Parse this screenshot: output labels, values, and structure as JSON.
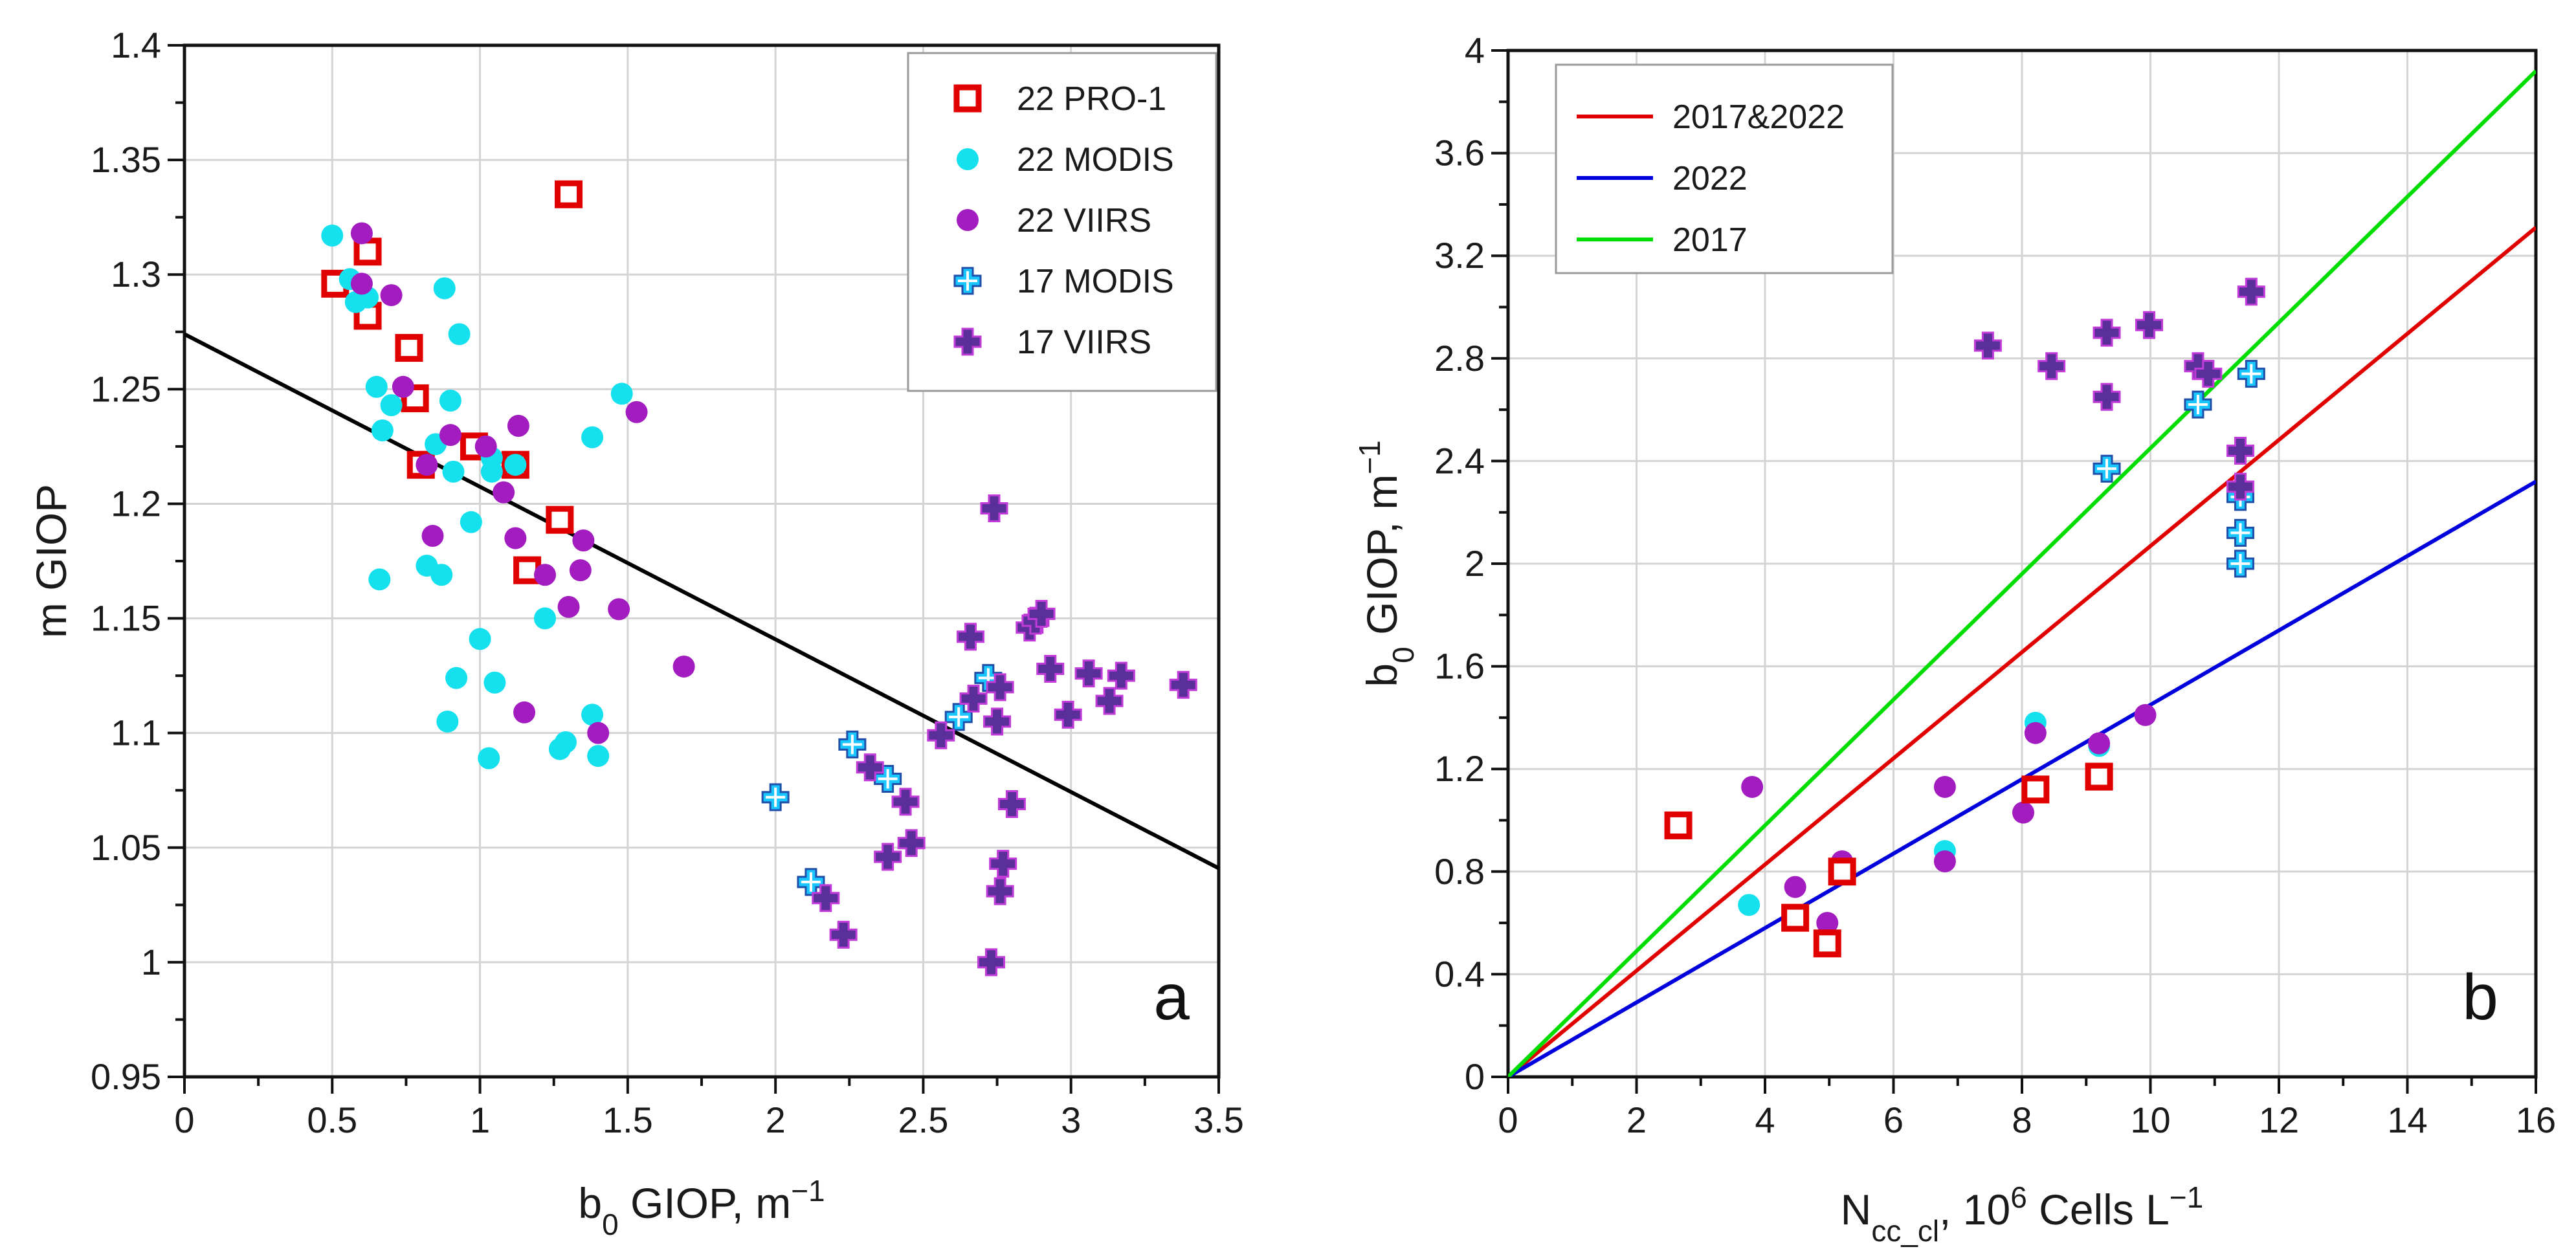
{
  "chart_data": [
    {
      "type": "scatter",
      "panel_label": "a",
      "xlabel": "b0 GIOP, m−1",
      "xlabel_parts": {
        "main": "b",
        "sub": "0",
        "rest": " GIOP, m",
        "sup": "−1"
      },
      "ylabel": "m GIOP",
      "xlim": [
        0,
        3.5
      ],
      "ylim": [
        0.95,
        1.4
      ],
      "xticks": [
        "0",
        "0.5",
        "1",
        "1.5",
        "2",
        "2.5",
        "3",
        "3.5"
      ],
      "xtick_values": [
        0,
        0.5,
        1,
        1.5,
        2,
        2.5,
        3,
        3.5
      ],
      "yticks": [
        "0.95",
        "1",
        "1.05",
        "1.1",
        "1.15",
        "1.2",
        "1.25",
        "1.3",
        "1.35",
        "1.4"
      ],
      "ytick_values": [
        0.95,
        1.0,
        1.05,
        1.1,
        1.15,
        1.2,
        1.25,
        1.3,
        1.35,
        1.4
      ],
      "grid": true,
      "legend": "top-right",
      "series": [
        {
          "name": "22 PRO-1",
          "marker": "square-open",
          "color": "#e00000",
          "x": [
            0.51,
            0.62,
            0.62,
            0.76,
            0.78,
            0.8,
            0.98,
            1.12,
            1.16,
            1.27,
            1.3
          ],
          "y": [
            1.296,
            1.31,
            1.282,
            1.268,
            1.246,
            1.217,
            1.225,
            1.217,
            1.171,
            1.193,
            1.335
          ]
        },
        {
          "name": "22 MODIS",
          "marker": "circle",
          "color": "#15e0ee",
          "x": [
            0.5,
            0.56,
            0.58,
            0.62,
            0.65,
            0.67,
            0.7,
            0.66,
            0.82,
            0.85,
            0.87,
            0.9,
            0.91,
            0.92,
            0.93,
            0.97,
            1.0,
            1.03,
            1.05,
            0.89,
            1.04,
            1.04,
            1.12,
            1.22,
            1.27,
            1.29,
            1.38,
            1.38,
            1.4,
            0.88,
            1.48
          ],
          "y": [
            1.317,
            1.298,
            1.288,
            1.29,
            1.251,
            1.232,
            1.243,
            1.167,
            1.173,
            1.226,
            1.169,
            1.245,
            1.214,
            1.124,
            1.274,
            1.192,
            1.141,
            1.089,
            1.122,
            1.105,
            1.214,
            1.22,
            1.217,
            1.15,
            1.093,
            1.096,
            1.229,
            1.108,
            1.09,
            1.294,
            1.248
          ]
        },
        {
          "name": "22 VIIRS",
          "marker": "circle",
          "color": "#a21cc0",
          "x": [
            0.6,
            0.6,
            0.7,
            0.74,
            0.82,
            0.84,
            0.9,
            1.02,
            1.08,
            1.12,
            1.13,
            1.15,
            1.22,
            1.3,
            1.34,
            1.35,
            1.4,
            1.47,
            1.53,
            1.69
          ],
          "y": [
            1.318,
            1.296,
            1.291,
            1.251,
            1.217,
            1.186,
            1.23,
            1.225,
            1.205,
            1.185,
            1.234,
            1.109,
            1.169,
            1.155,
            1.171,
            1.184,
            1.1,
            1.154,
            1.24,
            1.129
          ]
        },
        {
          "name": "17 MODIS",
          "marker": "plus-open",
          "color": "#1ac6ff",
          "x": [
            2.0,
            2.12,
            2.26,
            2.38,
            2.62,
            2.72
          ],
          "y": [
            1.072,
            1.035,
            1.095,
            1.08,
            1.107,
            1.124
          ]
        },
        {
          "name": "17 VIIRS",
          "marker": "plus",
          "color": "#5a2f9a",
          "x": [
            2.17,
            2.23,
            2.32,
            2.38,
            2.44,
            2.46,
            2.56,
            2.66,
            2.67,
            2.73,
            2.74,
            2.75,
            2.76,
            2.76,
            2.77,
            2.8,
            2.86,
            2.88,
            2.9,
            2.93,
            2.99,
            3.06,
            3.13,
            3.17,
            3.38
          ],
          "y": [
            1.028,
            1.012,
            1.085,
            1.046,
            1.07,
            1.052,
            1.099,
            1.142,
            1.115,
            1.0,
            1.198,
            1.105,
            1.031,
            1.12,
            1.043,
            1.069,
            1.146,
            1.149,
            1.152,
            1.128,
            1.108,
            1.126,
            1.114,
            1.125,
            1.121
          ]
        }
      ],
      "lines": [
        {
          "name": "fit",
          "color": "#000000",
          "x": [
            0,
            3.5
          ],
          "y": [
            1.274,
            1.041
          ]
        }
      ]
    },
    {
      "type": "scatter",
      "panel_label": "b",
      "xlabel": "Ncc_cl, 106 Cells L−1",
      "xlabel_parts": {
        "main": "N",
        "sub": "cc_cl",
        "mid": ", 10",
        "sup": "6",
        "rest": " Cells L",
        "sup2": "−1"
      },
      "ylabel": "b0 GIOP, m−1",
      "ylabel_parts": {
        "main": "b",
        "sub": "0",
        "rest": " GIOP, m",
        "sup": "−1"
      },
      "xlim": [
        0,
        16
      ],
      "ylim": [
        0,
        4
      ],
      "xticks": [
        "0",
        "2",
        "4",
        "6",
        "8",
        "10",
        "12",
        "14",
        "16"
      ],
      "xtick_values": [
        0,
        2,
        4,
        6,
        8,
        10,
        12,
        14,
        16
      ],
      "yticks": [
        "0",
        "0.4",
        "0.8",
        "1.2",
        "1.6",
        "2",
        "2.4",
        "2.8",
        "3.2",
        "3.6",
        "4"
      ],
      "ytick_values": [
        0,
        0.4,
        0.8,
        1.2,
        1.6,
        2.0,
        2.4,
        2.8,
        3.2,
        3.6,
        4.0
      ],
      "grid": true,
      "legend": "top-left",
      "lines": [
        {
          "name": "2017&2022",
          "color": "#e00000",
          "x": [
            0,
            16
          ],
          "y": [
            0,
            3.31
          ]
        },
        {
          "name": "2022",
          "color": "#0000dd",
          "x": [
            0,
            16
          ],
          "y": [
            0,
            2.32
          ]
        },
        {
          "name": "2017",
          "color": "#00dd00",
          "x": [
            0,
            16
          ],
          "y": [
            0,
            3.92
          ]
        }
      ],
      "series": [
        {
          "name": "22 MODIS",
          "marker": "circle",
          "color": "#15e0ee",
          "x": [
            3.75,
            4.97,
            6.8,
            8.21,
            9.2
          ],
          "y": [
            0.67,
            0.53,
            0.88,
            1.38,
            1.29
          ]
        },
        {
          "name": "22 VIIRS",
          "marker": "circle",
          "color": "#a21cc0",
          "x": [
            3.8,
            4.47,
            4.97,
            5.2,
            6.8,
            6.8,
            8.02,
            8.21,
            9.2,
            9.92
          ],
          "y": [
            1.13,
            0.74,
            0.6,
            0.84,
            0.84,
            1.13,
            1.03,
            1.34,
            1.3,
            1.41
          ]
        },
        {
          "name": "22 PRO-1",
          "marker": "square-open",
          "color": "#e00000",
          "x": [
            2.65,
            4.47,
            4.97,
            5.2,
            8.21,
            9.2
          ],
          "y": [
            0.98,
            0.62,
            0.52,
            0.8,
            1.12,
            1.17
          ]
        },
        {
          "name": "17 MODIS",
          "marker": "plus-open",
          "color": "#1ac6ff",
          "x": [
            9.32,
            10.74,
            11.4,
            11.4,
            11.4,
            11.57
          ],
          "y": [
            2.37,
            2.62,
            2.0,
            2.12,
            2.26,
            2.74
          ]
        },
        {
          "name": "17 VIIRS",
          "marker": "plus",
          "color": "#5a2f9a",
          "x": [
            7.47,
            8.46,
            9.32,
            9.32,
            9.98,
            10.74,
            10.9,
            11.4,
            11.4,
            11.57
          ],
          "y": [
            2.85,
            2.77,
            2.9,
            2.65,
            2.93,
            2.77,
            2.74,
            2.44,
            2.3,
            3.06
          ]
        }
      ]
    }
  ]
}
